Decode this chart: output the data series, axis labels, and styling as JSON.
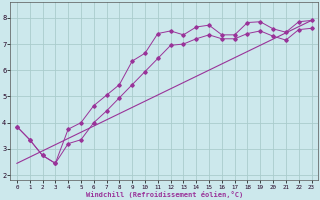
{
  "xlabel": "Windchill (Refroidissement éolien,°C)",
  "bg_color": "#cce8ec",
  "line_color": "#993399",
  "grid_color": "#aacccc",
  "xlim": [
    -0.5,
    23.5
  ],
  "ylim": [
    1.8,
    8.6
  ],
  "xticks": [
    0,
    1,
    2,
    3,
    4,
    5,
    6,
    7,
    8,
    9,
    10,
    11,
    12,
    13,
    14,
    15,
    16,
    17,
    18,
    19,
    20,
    21,
    22,
    23
  ],
  "yticks": [
    2,
    3,
    4,
    5,
    6,
    7,
    8
  ],
  "series1_x": [
    0,
    1,
    2,
    3,
    4,
    5,
    6,
    7,
    8,
    9,
    10,
    11,
    12,
    13,
    14,
    15,
    16,
    17,
    18,
    19,
    20,
    21,
    22,
    23
  ],
  "series1_y": [
    3.85,
    3.35,
    2.75,
    2.45,
    3.75,
    4.0,
    4.65,
    5.05,
    5.45,
    6.35,
    6.65,
    7.4,
    7.5,
    7.35,
    7.65,
    7.72,
    7.35,
    7.35,
    7.82,
    7.85,
    7.58,
    7.45,
    7.85,
    7.9
  ],
  "series2_x": [
    0,
    1,
    2,
    3,
    4,
    5,
    6,
    7,
    8,
    9,
    10,
    11,
    12,
    13,
    14,
    15,
    16,
    17,
    18,
    19,
    20,
    21,
    22,
    23
  ],
  "series2_y": [
    3.85,
    3.35,
    2.75,
    2.45,
    3.2,
    3.35,
    4.0,
    4.45,
    4.95,
    5.45,
    5.95,
    6.45,
    6.95,
    7.0,
    7.2,
    7.35,
    7.2,
    7.2,
    7.4,
    7.5,
    7.3,
    7.15,
    7.55,
    7.6
  ],
  "series3_x": [
    0,
    23
  ],
  "series3_y": [
    2.45,
    7.9
  ]
}
